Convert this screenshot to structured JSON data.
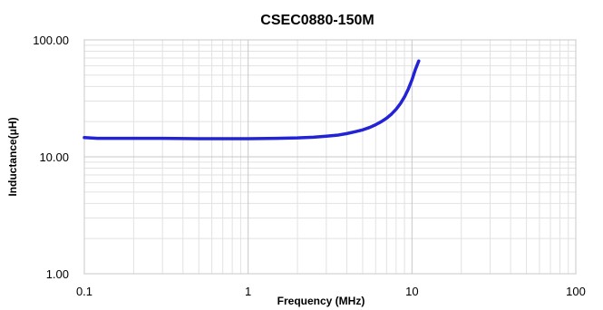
{
  "chart_data": {
    "type": "line",
    "title": "CSEC0880-150M",
    "xlabel": "Frequency  (MHz)",
    "ylabel": "Inductance(μH)",
    "x_scale": "log",
    "y_scale": "log",
    "xlim": [
      0.1,
      100
    ],
    "ylim": [
      1,
      100
    ],
    "x_ticks": [
      {
        "value": 0.1,
        "label": "0.1"
      },
      {
        "value": 1,
        "label": "1"
      },
      {
        "value": 10,
        "label": "10"
      },
      {
        "value": 100,
        "label": "100"
      }
    ],
    "y_ticks": [
      {
        "value": 1,
        "label": "1.00"
      },
      {
        "value": 10,
        "label": "10.00"
      },
      {
        "value": 100,
        "label": "100.00"
      }
    ],
    "grid": true,
    "legend": "none",
    "series": [
      {
        "color": "#2323d6",
        "points": [
          [
            0.1,
            14.6
          ],
          [
            0.12,
            14.4
          ],
          [
            0.15,
            14.4
          ],
          [
            0.2,
            14.4
          ],
          [
            0.3,
            14.4
          ],
          [
            0.5,
            14.3
          ],
          [
            0.7,
            14.3
          ],
          [
            1,
            14.3
          ],
          [
            1.5,
            14.4
          ],
          [
            2,
            14.5
          ],
          [
            2.5,
            14.7
          ],
          [
            3,
            15.0
          ],
          [
            3.5,
            15.3
          ],
          [
            4,
            15.8
          ],
          [
            4.5,
            16.4
          ],
          [
            5,
            17.0
          ],
          [
            5.5,
            17.8
          ],
          [
            6,
            18.8
          ],
          [
            6.5,
            20.0
          ],
          [
            7,
            21.4
          ],
          [
            7.5,
            23.2
          ],
          [
            8,
            25.5
          ],
          [
            8.5,
            28.5
          ],
          [
            9,
            32.5
          ],
          [
            9.5,
            38.0
          ],
          [
            10,
            45.5
          ],
          [
            10.5,
            56.0
          ],
          [
            11,
            66.0
          ]
        ]
      }
    ]
  }
}
